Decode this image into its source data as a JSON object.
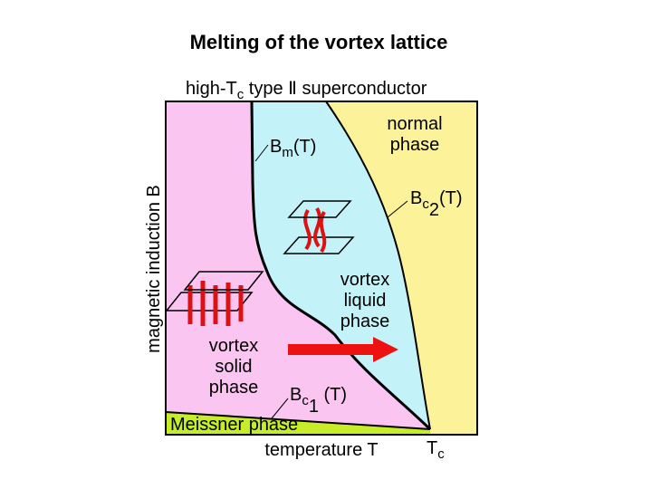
{
  "title": "Melting of the vortex lattice",
  "header": {
    "text": "high-T",
    "sub": "c",
    "rest": " type Ⅱ superconductor"
  },
  "normal_phase": [
    "normal",
    "phase"
  ],
  "bm_curve": {
    "text": "B",
    "sub": "m",
    "rest": "(T)"
  },
  "bc2_curve": {
    "text": "B",
    "sub": "c",
    "sub2": "2",
    "rest": "(T)"
  },
  "liquid_phase": [
    "vortex",
    "liquid",
    "phase"
  ],
  "solid_phase": [
    "vortex",
    "solid",
    "phase"
  ],
  "bc1_curve": {
    "text": "B",
    "sub": "c",
    "sub2": "1",
    "rest": " (T)"
  },
  "meissner_phase": "Meissner phase",
  "x_axis": "temperature T",
  "tc_label": {
    "text": "T",
    "sub": "c"
  },
  "y_axis": "magnetic induction B"
}
